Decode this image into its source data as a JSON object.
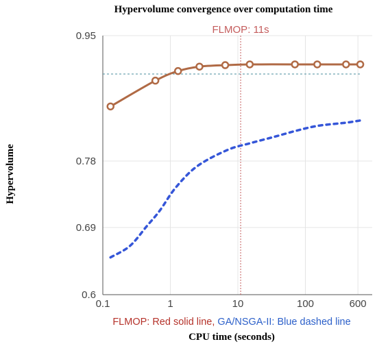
{
  "chart_data": {
    "type": "line",
    "title": "Hypervolume convergence over computation time",
    "xlabel": "CPU time (seconds)",
    "ylabel": "Hypervolume",
    "x_scale": "log",
    "xlim": [
      0.1,
      700
    ],
    "ylim": [
      0.6,
      0.95
    ],
    "x_ticks": [
      0.1,
      1,
      10,
      100,
      600
    ],
    "x_tick_labels": [
      "0.1",
      "1",
      "10",
      "100",
      "600"
    ],
    "y_ticks": [
      0.6,
      0.69,
      0.78,
      0.95
    ],
    "y_tick_labels": [
      "0.6",
      "0.69",
      "0.78",
      "0.95"
    ],
    "grid": true,
    "legend": {
      "position": "bottom",
      "entries": [
        {
          "text": "FLMOP: Red solid line,",
          "color": "#b5322a"
        },
        {
          "text": " GA/NSGA-II: Blue dashed line",
          "color": "#2b5fc9"
        }
      ]
    },
    "series": [
      {
        "name": "FLMOP",
        "color": "#b06a45",
        "style": "solid",
        "marker": "circle",
        "x": [
          0.13,
          0.6,
          1.3,
          2.7,
          6.5,
          15,
          70,
          150,
          400,
          650
        ],
        "y": [
          0.854,
          0.889,
          0.902,
          0.908,
          0.91,
          0.911,
          0.911,
          0.911,
          0.911,
          0.911
        ]
      },
      {
        "name": "GA/NSGA-II",
        "color": "#3556d8",
        "style": "dashed",
        "marker": "none",
        "x": [
          0.13,
          0.25,
          0.45,
          0.7,
          1.2,
          2.5,
          7,
          15,
          35,
          80,
          160,
          400,
          650
        ],
        "y": [
          0.65,
          0.665,
          0.692,
          0.713,
          0.744,
          0.773,
          0.795,
          0.804,
          0.813,
          0.822,
          0.828,
          0.832,
          0.835
        ]
      }
    ],
    "reference_lines": [
      {
        "orientation": "vertical",
        "x": 11,
        "color": "#c45c5c",
        "label": "FLMOP: 11s"
      },
      {
        "orientation": "horizontal",
        "y": 0.898,
        "color": "#4a8e9e"
      }
    ]
  }
}
